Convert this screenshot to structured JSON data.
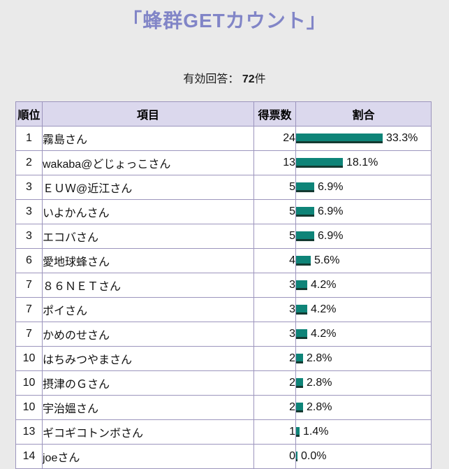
{
  "page": {
    "title": "「蜂群GETカウント」"
  },
  "survey": {
    "valid_label": "有効回答：",
    "valid_count": "72",
    "valid_unit": "件"
  },
  "table": {
    "columns": [
      "順位",
      "項目",
      "得票数",
      "割合"
    ],
    "rows": [
      {
        "rank": "1",
        "name": "霧島さん",
        "votes": "24",
        "percent": 33.3
      },
      {
        "rank": "2",
        "name": "wakaba@どじょっこさん",
        "votes": "13",
        "percent": 18.1
      },
      {
        "rank": "3",
        "name": "ＥＵＷ@近江さん",
        "votes": "5",
        "percent": 6.9
      },
      {
        "rank": "3",
        "name": "いよかんさん",
        "votes": "5",
        "percent": 6.9
      },
      {
        "rank": "3",
        "name": "エコバさん",
        "votes": "5",
        "percent": 6.9
      },
      {
        "rank": "6",
        "name": "愛地球蜂さん",
        "votes": "4",
        "percent": 5.6
      },
      {
        "rank": "7",
        "name": "８６ＮＥＴさん",
        "votes": "3",
        "percent": 4.2
      },
      {
        "rank": "7",
        "name": "ポイさん",
        "votes": "3",
        "percent": 4.2
      },
      {
        "rank": "7",
        "name": "かめのせさん",
        "votes": "3",
        "percent": 4.2
      },
      {
        "rank": "10",
        "name": "はちみつやまさん",
        "votes": "2",
        "percent": 2.8
      },
      {
        "rank": "10",
        "name": "摂津のＧさん",
        "votes": "2",
        "percent": 2.8
      },
      {
        "rank": "10",
        "name": "宇治媼さん",
        "votes": "2",
        "percent": 2.8
      },
      {
        "rank": "13",
        "name": "ギコギコトンボさん",
        "votes": "1",
        "percent": 1.4
      },
      {
        "rank": "14",
        "name": "joeさん",
        "votes": "0",
        "percent": 0.0
      }
    ]
  },
  "chart_data": {
    "type": "bar",
    "orientation": "horizontal",
    "title": "「蜂群GETカウント」",
    "subtitle": "有効回答： 72件",
    "categories": [
      "霧島さん",
      "wakaba@どじょっこさん",
      "ＥＵＷ@近江さん",
      "いよかんさん",
      "エコバさん",
      "愛地球蜂さん",
      "８６ＮＥＴさん",
      "ポイさん",
      "かめのせさん",
      "はちみつやまさん",
      "摂津のＧさん",
      "宇治媼さん",
      "ギコギコトンボさん",
      "joeさん"
    ],
    "series": [
      {
        "name": "得票数",
        "values": [
          24,
          13,
          5,
          5,
          5,
          4,
          3,
          3,
          3,
          2,
          2,
          2,
          1,
          0
        ]
      },
      {
        "name": "割合(%)",
        "values": [
          33.3,
          18.1,
          6.9,
          6.9,
          6.9,
          5.6,
          4.2,
          4.2,
          4.2,
          2.8,
          2.8,
          2.8,
          1.4,
          0.0
        ]
      }
    ],
    "ranks": [
      1,
      2,
      3,
      3,
      3,
      6,
      7,
      7,
      7,
      10,
      10,
      10,
      13,
      14
    ],
    "total_responses": 72,
    "bar_color": "#0e8478",
    "bar_shadow_color": "#143a31",
    "xlim_percent": [
      0,
      100
    ]
  },
  "colors": {
    "page_background": "#eaeaea",
    "title_text": "#8185c7",
    "header_background": "#dbd8ed",
    "table_border": "#9c95bd",
    "bar_fill": "#0e8478",
    "bar_edge": "#143a31"
  }
}
